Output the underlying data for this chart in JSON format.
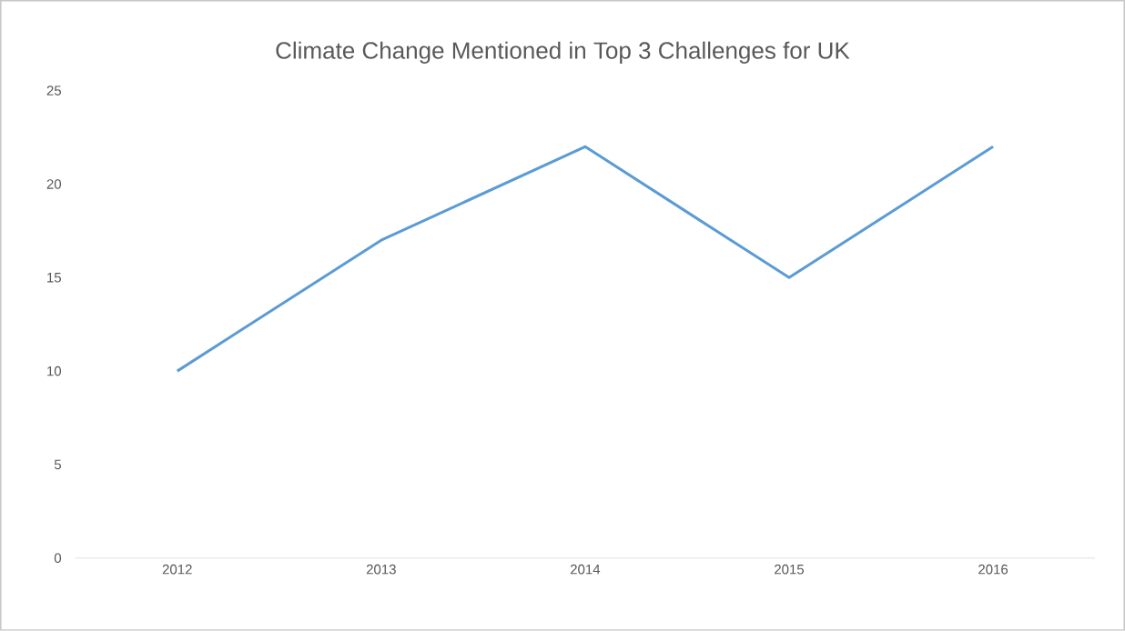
{
  "chart_data": {
    "type": "line",
    "title": "Climate Change Mentioned in Top 3 Challenges for UK",
    "categories": [
      "2012",
      "2013",
      "2014",
      "2015",
      "2016"
    ],
    "values": [
      10,
      17,
      22,
      15,
      22
    ],
    "color": "#5b9bd5",
    "ylim": [
      0,
      25
    ],
    "yticks": [
      0,
      5,
      10,
      15,
      20,
      25
    ]
  }
}
